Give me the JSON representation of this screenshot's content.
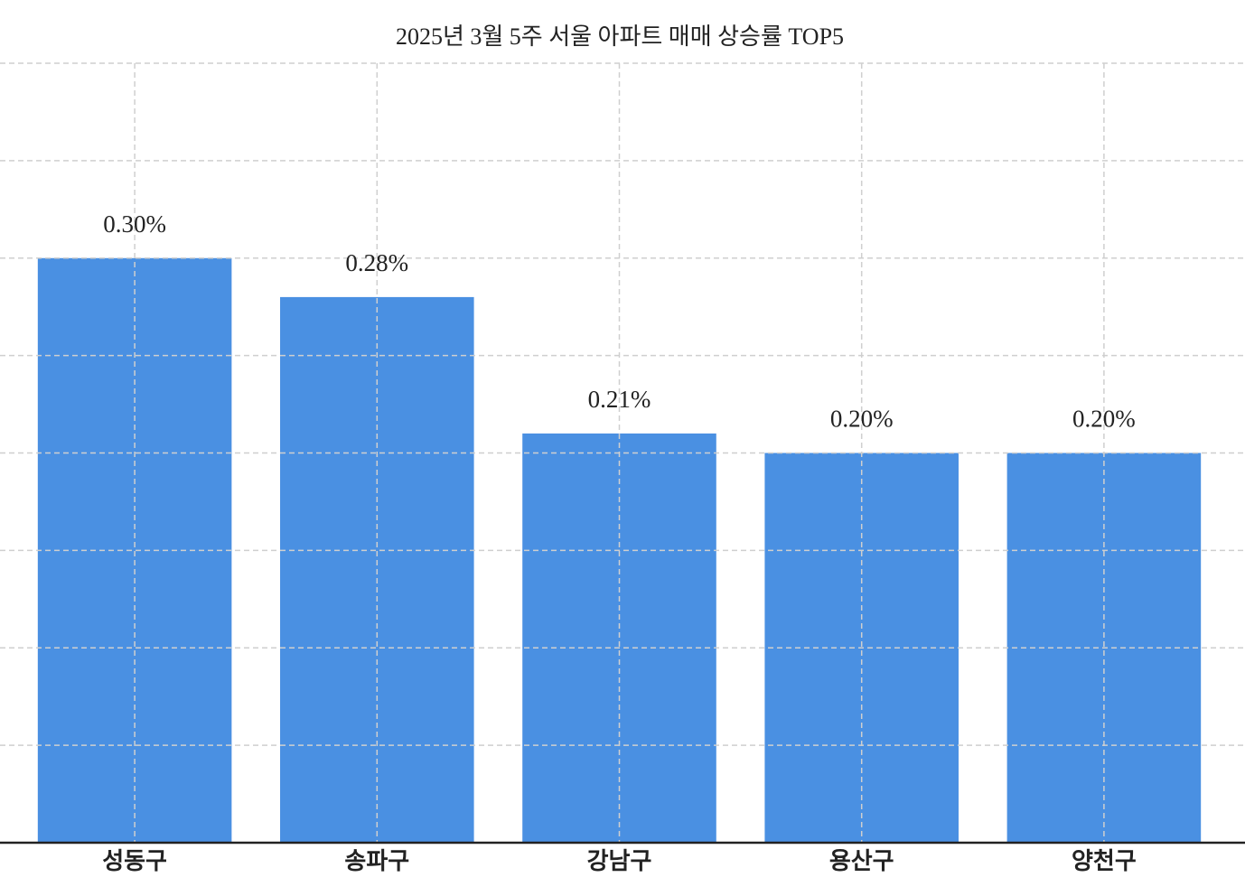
{
  "chart_data": {
    "type": "bar",
    "title": "2025년 3월 5주 서울 아파트 매매 상승률 TOP5",
    "categories": [
      "성동구",
      "송파구",
      "강남구",
      "용산구",
      "양천구"
    ],
    "values": [
      0.3,
      0.28,
      0.21,
      0.2,
      0.2
    ],
    "value_labels": [
      "0.30%",
      "0.28%",
      "0.21%",
      "0.20%",
      "0.20%"
    ],
    "color": "#4a90e2",
    "ylim": [
      0,
      0.4
    ],
    "yticks": [
      0,
      0.05,
      0.1,
      0.15,
      0.2,
      0.25,
      0.3,
      0.35,
      0.4
    ],
    "grid": true
  }
}
